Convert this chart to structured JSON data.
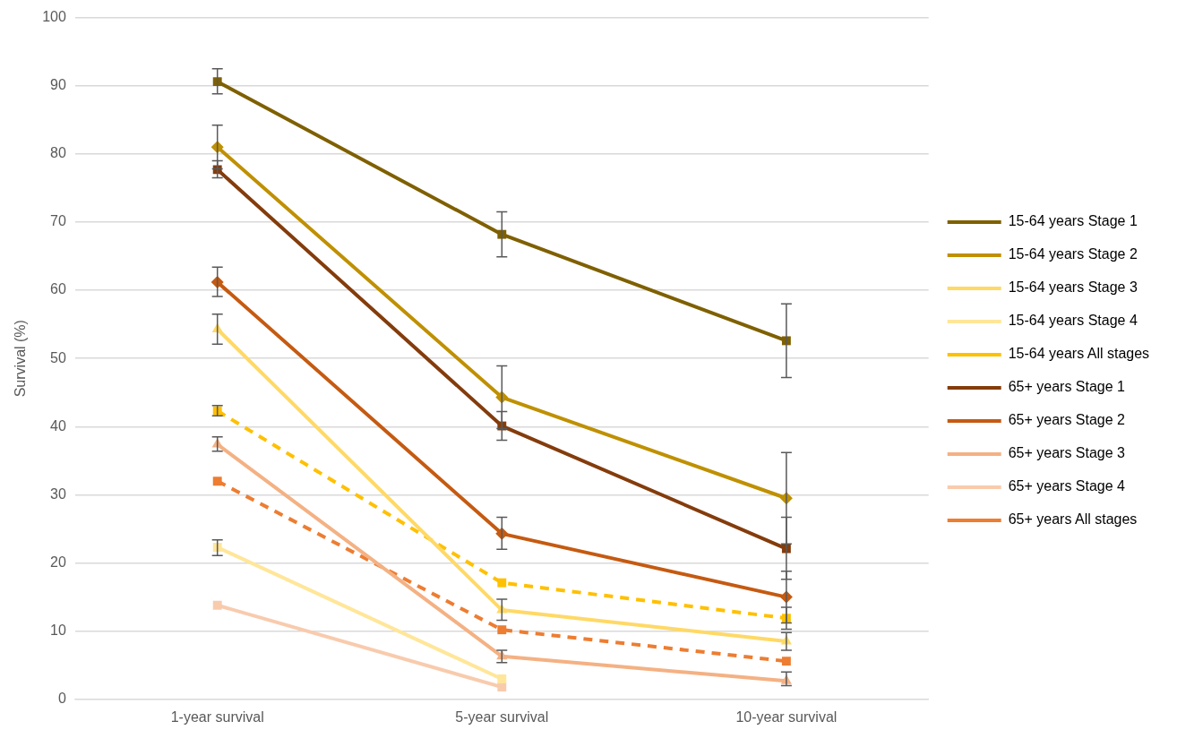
{
  "chart_data": {
    "type": "line",
    "ylabel": "Survival (%)",
    "categories": [
      "1-year survival",
      "5-year survival",
      "10-year survival"
    ],
    "ylim": [
      0,
      100
    ],
    "yticks": [
      0,
      10,
      20,
      30,
      40,
      50,
      60,
      70,
      80,
      90,
      100
    ],
    "grid": "y",
    "legend": "right",
    "series": [
      {
        "name": "15-64 years Stage 1",
        "color": "#7f6000",
        "marker": "square",
        "line_style": "solid",
        "values": [
          90.6,
          68.2,
          52.6
        ],
        "errors": [
          [
            88.8,
            92.5
          ],
          [
            64.9,
            71.5
          ],
          [
            47.2,
            58.0
          ]
        ]
      },
      {
        "name": "15-64 years Stage 2",
        "color": "#bf9000",
        "marker": "diamond",
        "line_style": "solid",
        "values": [
          81.0,
          44.3,
          29.5
        ],
        "errors": [
          [
            77.8,
            84.2
          ],
          [
            39.7,
            48.9
          ],
          [
            22.8,
            36.2
          ]
        ]
      },
      {
        "name": "15-64 years Stage 3",
        "color": "#ffd966",
        "marker": "triangle",
        "line_style": "solid",
        "values": [
          54.3,
          13.1,
          8.5
        ],
        "errors": [
          [
            52.1,
            56.5
          ],
          [
            11.6,
            14.7
          ],
          [
            7.2,
            9.8
          ]
        ]
      },
      {
        "name": "15-64 years Stage 4",
        "color": "#ffe699",
        "marker": "square",
        "line_style": "solid",
        "values": [
          22.3,
          3.0,
          null
        ],
        "errors": [
          [
            21.1,
            23.4
          ],
          null,
          null
        ]
      },
      {
        "name": "15-64 years All stages",
        "color": "#ffc000",
        "marker": "square",
        "line_style": "dashed",
        "values": [
          42.3,
          17.1,
          11.9
        ],
        "errors": [
          [
            41.6,
            43.1
          ],
          null,
          [
            10.3,
            13.5
          ]
        ]
      },
      {
        "name": "65+ years Stage 1",
        "color": "#843c0c",
        "marker": "square",
        "line_style": "solid",
        "values": [
          77.7,
          40.1,
          22.1
        ],
        "errors": [
          [
            76.5,
            79.0
          ],
          [
            38.0,
            42.2
          ],
          [
            17.6,
            26.7
          ]
        ]
      },
      {
        "name": "65+ years Stage 2",
        "color": "#c55a11",
        "marker": "diamond",
        "line_style": "solid",
        "values": [
          61.2,
          24.3,
          15.0
        ],
        "errors": [
          [
            59.1,
            63.4
          ],
          [
            22.0,
            26.7
          ],
          [
            11.2,
            18.8
          ]
        ]
      },
      {
        "name": "65+ years Stage 3",
        "color": "#f4b183",
        "marker": "triangle",
        "line_style": "solid",
        "values": [
          37.4,
          6.3,
          2.7
        ],
        "errors": [
          [
            36.4,
            38.5
          ],
          [
            5.4,
            7.2
          ],
          [
            2.0,
            4.0
          ]
        ]
      },
      {
        "name": "65+ years Stage 4",
        "color": "#f8cbad",
        "marker": "square",
        "line_style": "solid",
        "values": [
          13.8,
          1.8,
          null
        ]
      },
      {
        "name": "65+ years All stages",
        "color": "#ed7d31",
        "marker": "square",
        "line_style": "dashed",
        "values": [
          32.0,
          10.2,
          5.6
        ]
      }
    ]
  }
}
